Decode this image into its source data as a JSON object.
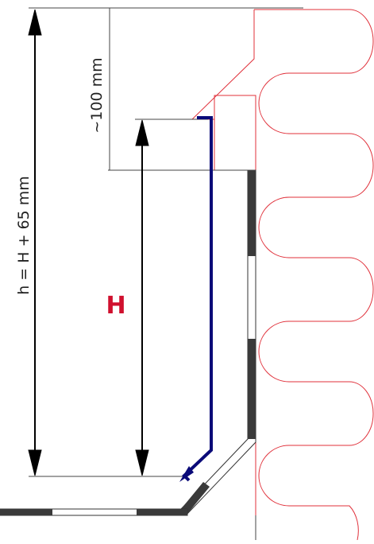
{
  "labels": {
    "h": "h = H + 65 mm",
    "offset": "~100 mm",
    "H": "H"
  },
  "colors": {
    "background": "#ffffff",
    "dimension_line": "#000000",
    "construction_line": "#444444",
    "insulation_outline": "#e0303a",
    "profile": "#0a0a78",
    "label_H": "#d0102e",
    "wall_segment_dark": "#3a3a3a"
  },
  "elements": {
    "insulation": "insulation-outline",
    "profile": "blue-profile",
    "floor": "floor-strip",
    "wall": "wall-strip"
  }
}
